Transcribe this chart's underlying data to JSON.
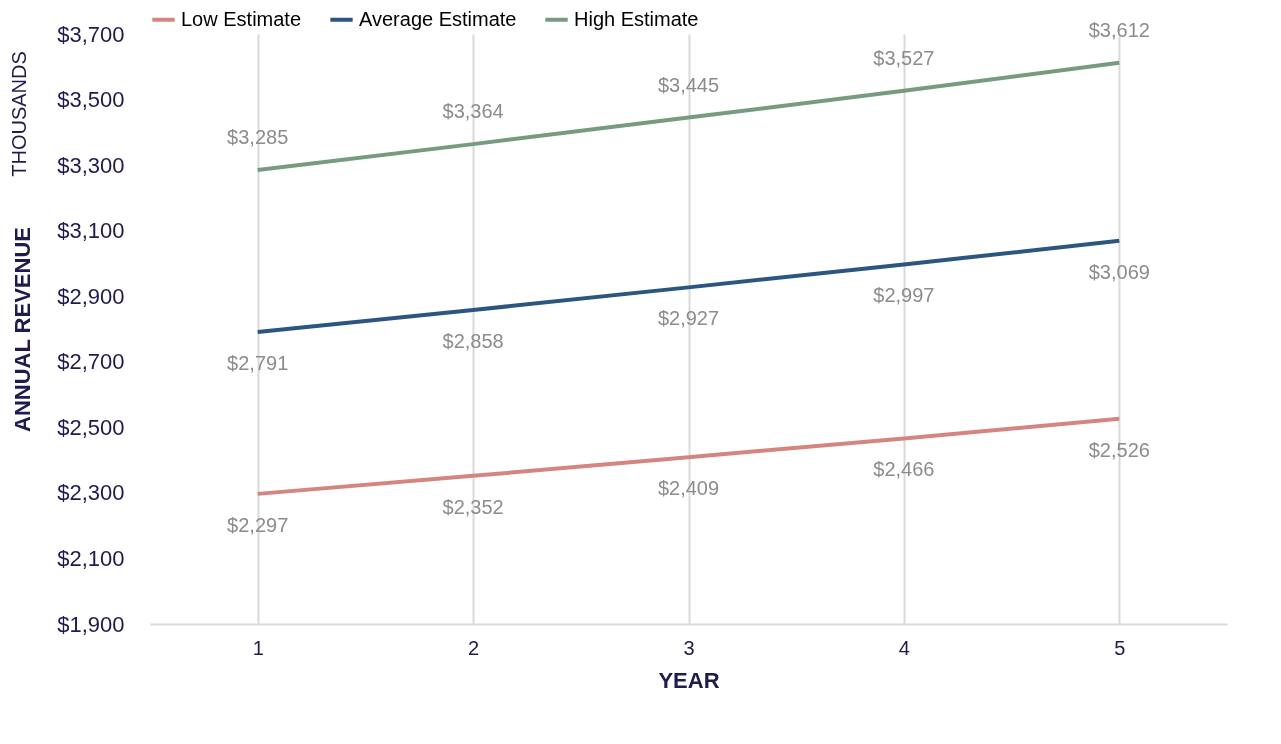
{
  "chart_data": {
    "type": "line",
    "xlabel": "YEAR",
    "ylabel": "ANNUAL REVENUE",
    "annotations": [
      "THOUSANDS"
    ],
    "categories": [
      "1",
      "2",
      "3",
      "4",
      "5"
    ],
    "series": [
      {
        "name": "Low Estimate",
        "color": "#d4867e",
        "values": [
          2297,
          2352,
          2409,
          2466,
          2526
        ],
        "value_labels": [
          "$2,297",
          "$2,352",
          "$2,409",
          "$2,466",
          "$2,526"
        ]
      },
      {
        "name": "Average Estimate",
        "color": "#2c5680",
        "values": [
          2791,
          2858,
          2927,
          2997,
          3069
        ],
        "value_labels": [
          "$2,791",
          "$2,858",
          "$2,927",
          "$2,997",
          "$3,069"
        ]
      },
      {
        "name": "High Estimate",
        "color": "#769b7e",
        "values": [
          3285,
          3364,
          3445,
          3527,
          3612
        ],
        "value_labels": [
          "$3,285",
          "$3,364",
          "$3,445",
          "$3,527",
          "$3,612"
        ]
      }
    ],
    "ylim": [
      1900,
      3700
    ],
    "yticks": [
      {
        "value": 1900,
        "label": "$1,900"
      },
      {
        "value": 2100,
        "label": "$2,100"
      },
      {
        "value": 2300,
        "label": "$2,300"
      },
      {
        "value": 2500,
        "label": "$2,500"
      },
      {
        "value": 2700,
        "label": "$2,700"
      },
      {
        "value": 2900,
        "label": "$2,900"
      },
      {
        "value": 3100,
        "label": "$3,100"
      },
      {
        "value": 3300,
        "label": "$3,300"
      },
      {
        "value": 3500,
        "label": "$3,500"
      },
      {
        "value": 3700,
        "label": "$3,700"
      }
    ],
    "grid": "x",
    "legend": "top",
    "marker": "none",
    "line_style": "solid"
  }
}
